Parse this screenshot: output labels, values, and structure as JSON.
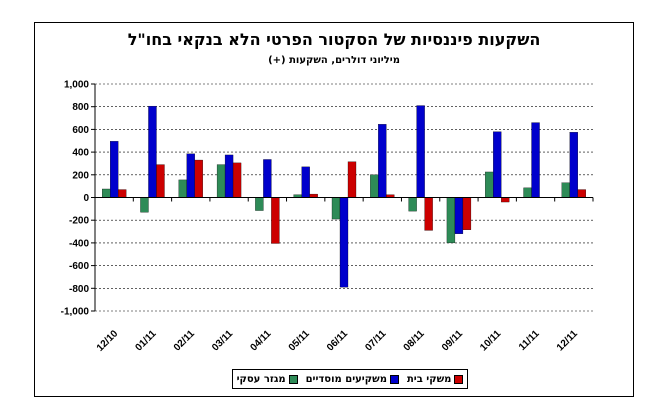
{
  "chart_data": {
    "type": "bar",
    "title": "השקעות פיננסיות של הסקטור הפרטי הלא בנקאי בחו\"ל",
    "subtitle": "מיליוני דולרים, השקעות (+)",
    "xlabel": "",
    "ylabel": "",
    "ylim": [
      -1000,
      1000
    ],
    "yticks": [
      1000,
      800,
      600,
      400,
      200,
      0,
      -200,
      -400,
      -600,
      -800,
      -1000
    ],
    "ytick_labels": [
      "1,000",
      "800",
      "600",
      "400",
      "200",
      "0",
      "-200",
      "-400",
      "-600",
      "-800",
      "-1,000"
    ],
    "grid": "horizontal-dashed",
    "legend_position": "bottom",
    "categories": [
      "12/10",
      "01/11",
      "02/11",
      "03/11",
      "04/11",
      "05/11",
      "06/11",
      "07/11",
      "08/11",
      "09/11",
      "10/11",
      "11/11",
      "12/11"
    ],
    "series": [
      {
        "name": "מגזר עסקי",
        "color": "#2e8b57",
        "values": [
          75,
          -130,
          155,
          290,
          -115,
          25,
          -190,
          200,
          -120,
          -400,
          225,
          85,
          130
        ]
      },
      {
        "name": "משקיעים מוסדיים",
        "color": "#0000cc",
        "values": [
          495,
          805,
          385,
          375,
          335,
          270,
          -790,
          645,
          810,
          -320,
          580,
          660,
          575
        ]
      },
      {
        "name": "משקי בית",
        "color": "#cc0000",
        "values": [
          70,
          290,
          330,
          305,
          -405,
          30,
          315,
          25,
          -290,
          -285,
          -40,
          0,
          70
        ]
      }
    ]
  }
}
